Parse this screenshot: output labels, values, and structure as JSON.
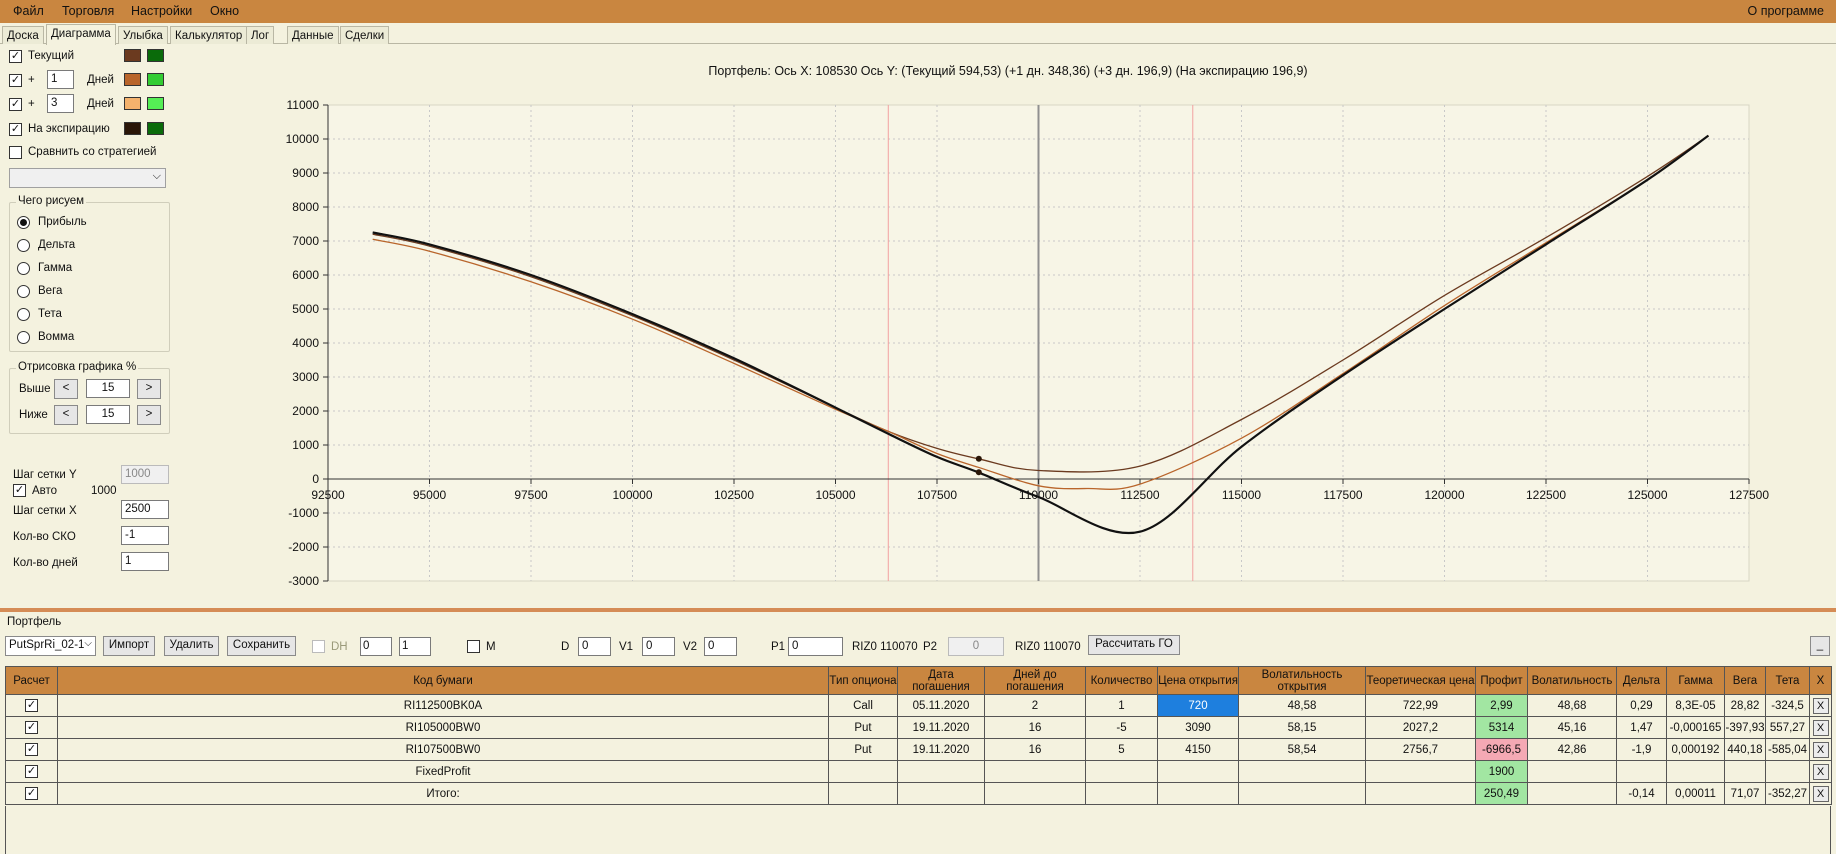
{
  "menubar": {
    "items": [
      "Файл",
      "Торговля",
      "Настройки",
      "Окно"
    ],
    "right": "О программе",
    "color": "#c98640"
  },
  "tabs": [
    "Доска",
    "Диаграмма",
    "Улыбка",
    "Калькулятор",
    "Лог",
    "Данные",
    "Сделки"
  ],
  "active_tab": "Диаграмма",
  "left_panel": {
    "curves": [
      {
        "checked": true,
        "label": "Текущий",
        "has_days": false,
        "swatch1": "#6b3a1f",
        "swatch2": "#0a6b0a"
      },
      {
        "checked": true,
        "prefix": "+",
        "days": "1",
        "label": "Дней",
        "has_days": true,
        "swatch1": "#b9652b",
        "swatch2": "#33cc33"
      },
      {
        "checked": true,
        "prefix": "+",
        "days": "3",
        "label": "Дней",
        "has_days": true,
        "swatch1": "#f4b26d",
        "swatch2": "#55ee55"
      },
      {
        "checked": true,
        "label": "На экспирацию",
        "has_days": false,
        "swatch1": "#2a1608",
        "swatch2": "#0a6b0a"
      }
    ],
    "compare_label": "Сравнить со стратегией",
    "compare_checked": false,
    "draw_group": {
      "title": "Чего рисуем",
      "options": [
        "Прибыль",
        "Дельта",
        "Гамма",
        "Вега",
        "Тета",
        "Вомма"
      ],
      "selected": "Прибыль"
    },
    "render_group": {
      "title": "Отрисовка графика %",
      "above_label": "Выше",
      "above_value": "15",
      "below_label": "Ниже",
      "below_value": "15",
      "btn_left": "<",
      "btn_right": ">"
    },
    "grid_step_y_label": "Шаг сетки Y",
    "grid_step_y_value": "1000",
    "auto_label": "Авто",
    "auto_checked": true,
    "auto_value": "1000",
    "grid_step_x_label": "Шаг сетки X",
    "grid_step_x_value": "2500",
    "sko_label": "Кол-во СКО",
    "sko_value": "-1",
    "days_label": "Кол-во дней",
    "days_value": "1"
  },
  "chart_data": {
    "type": "line",
    "title": "Портфель: Ось X: 108530 Ось Y:  (Текущий 594,53)  (+1 дн. 348,36)  (+3 дн. 196,9)  (На экспирацию 196,9)",
    "xlabel": "",
    "ylabel": "",
    "xlim": [
      92500,
      127500
    ],
    "ylim": [
      -3000,
      11000
    ],
    "x_ticks": [
      "92500",
      "95000",
      "97500",
      "100000",
      "102500",
      "105000",
      "107500",
      "110000",
      "112500",
      "115000",
      "117500",
      "120000",
      "122500",
      "125000",
      "127500"
    ],
    "y_ticks": [
      "11000",
      "10000",
      "9000",
      "8000",
      "7000",
      "6000",
      "5000",
      "4000",
      "3000",
      "2000",
      "1000",
      "0",
      "-1000",
      "-2000",
      "-3000"
    ],
    "grid": true,
    "vlines": [
      {
        "x": 106300,
        "color": "#f2a0a0"
      },
      {
        "x": 110000,
        "color": "#909090"
      },
      {
        "x": 113800,
        "color": "#f2a0a0"
      }
    ],
    "series": [
      {
        "color": "#6b3a1f",
        "x": [
          93600,
          95000,
          97500,
          100000,
          102500,
          105000,
          106300,
          107500,
          108530,
          110000,
          112500,
          115000,
          117500,
          120000,
          122500,
          125000,
          126500
        ],
        "y": [
          7200,
          6850,
          5950,
          4800,
          3500,
          2100,
          1400,
          900,
          590,
          250,
          380,
          1750,
          3500,
          5400,
          7100,
          8900,
          10100
        ]
      },
      {
        "color": "#b9652b",
        "x": [
          93600,
          95000,
          97500,
          100000,
          102500,
          105000,
          106300,
          107500,
          108530,
          110000,
          111200,
          112500,
          115000,
          117500,
          120000,
          122500,
          125000,
          126500
        ],
        "y": [
          7050,
          6700,
          5800,
          4700,
          3400,
          2050,
          1400,
          750,
          340,
          -200,
          -280,
          -150,
          1200,
          3100,
          5100,
          6950,
          8800,
          10100
        ]
      },
      {
        "color": "#111111",
        "x": [
          93600,
          95000,
          97500,
          100000,
          102500,
          105000,
          106300,
          107500,
          108530,
          110000,
          112500,
          115000,
          117500,
          120000,
          122500,
          125000,
          126500
        ],
        "y": [
          7250,
          6900,
          6000,
          4850,
          3550,
          2100,
          1330,
          650,
          190,
          -530,
          -1550,
          950,
          3050,
          5000,
          6900,
          8800,
          10100
        ]
      }
    ],
    "markers": [
      {
        "x": 108530,
        "y": 594.53
      },
      {
        "x": 108530,
        "y": 196.9
      }
    ]
  },
  "portfolio": {
    "title": "Портфель",
    "select_value": "PutSprRi_02-1",
    "import": "Импорт",
    "delete": "Удалить",
    "save": "Сохранить",
    "dh_label": "DH",
    "spin1": "0",
    "spin2": "1",
    "m_label": "M",
    "d_label": "D",
    "d_value": "0",
    "v1_label": "V1",
    "v1_value": "0",
    "v2_label": "V2",
    "v2_value": "0",
    "p1_label": "P1",
    "p1_value": "0",
    "p1_ticker": "RIZ0 110070",
    "p2_label": "P2",
    "p2_value": "0",
    "p2_ticker": "RIZ0 110070",
    "calc_go": "Рассчитать ГО",
    "minimize": "_"
  },
  "table": {
    "headers": [
      "Расчет",
      "Код бумаги",
      "Тип опциона",
      "Дата погашения",
      "Дней до погашения",
      "Количество",
      "Цена открытия",
      "Волатильность открытия",
      "Теоретическая цена",
      "Профит",
      "Волатильность",
      "Дельта",
      "Гамма",
      "Вега",
      "Тета",
      "X"
    ],
    "rows": [
      {
        "code": "RI112500BK0A",
        "type": "Call",
        "date": "05.11.2020",
        "days": "2",
        "qty": "1",
        "open_price": "720",
        "open_vol": "48,58",
        "theo": "722,99",
        "profit": "2,99",
        "vol": "48,68",
        "delta": "0,29",
        "gamma": "8,3E-05",
        "vega": "28,82",
        "theta": "-324,5",
        "x": "X"
      },
      {
        "code": "RI105000BW0",
        "type": "Put",
        "date": "19.11.2020",
        "days": "16",
        "qty": "-5",
        "open_price": "3090",
        "open_vol": "58,15",
        "theo": "2027,2",
        "profit": "5314",
        "vol": "45,16",
        "delta": "1,47",
        "gamma": "-0,000165",
        "vega": "-397,93",
        "theta": "557,27",
        "x": "X"
      },
      {
        "code": "RI107500BW0",
        "type": "Put",
        "date": "19.11.2020",
        "days": "16",
        "qty": "5",
        "open_price": "4150",
        "open_vol": "58,54",
        "theo": "2756,7",
        "profit": "-6966,5",
        "vol": "42,86",
        "delta": "-1,9",
        "gamma": "0,000192",
        "vega": "440,18",
        "theta": "-585,04",
        "x": "X"
      },
      {
        "code": "FixedProfit",
        "type": "",
        "date": "",
        "days": "",
        "qty": "",
        "open_price": "",
        "open_vol": "",
        "theo": "",
        "profit": "1900",
        "vol": "",
        "delta": "",
        "gamma": "",
        "vega": "",
        "theta": "",
        "x": "X"
      },
      {
        "code": "Итого:",
        "type": "",
        "date": "",
        "days": "",
        "qty": "",
        "open_price": "",
        "open_vol": "",
        "theo": "",
        "profit": "250,49",
        "vol": "",
        "delta": "-0,14",
        "gamma": "0,00011",
        "vega": "71,07",
        "theta": "-352,27",
        "x": "X"
      }
    ]
  }
}
